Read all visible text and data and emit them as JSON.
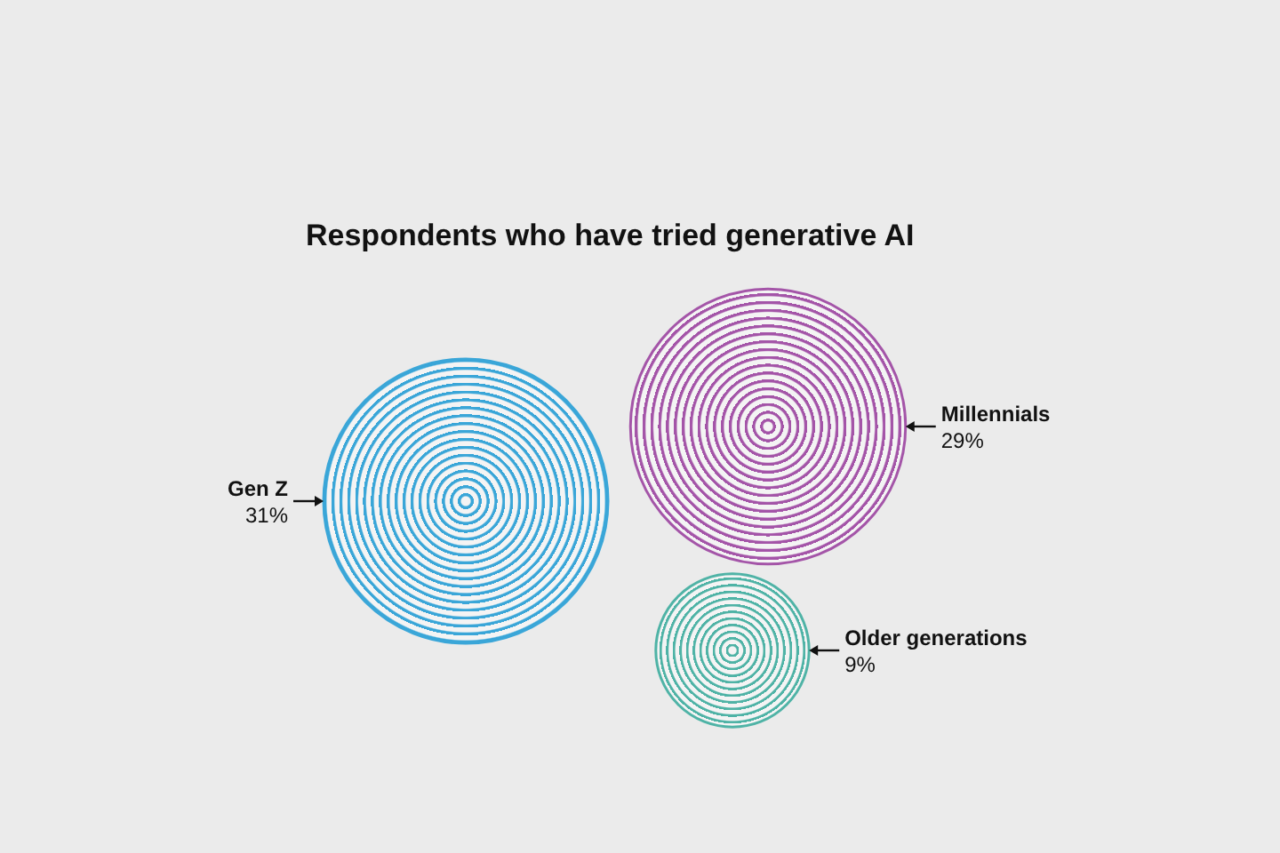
{
  "chart_data": {
    "type": "other",
    "title": "Respondents who have tried generative AI",
    "categories": [
      "Gen Z",
      "Millennials",
      "Older generations"
    ],
    "values": [
      31,
      29,
      9
    ],
    "value_labels": [
      "31%",
      "29%",
      "9%"
    ],
    "colors": [
      "#3aa6d8",
      "#a455a8",
      "#4fb3a6"
    ]
  }
}
